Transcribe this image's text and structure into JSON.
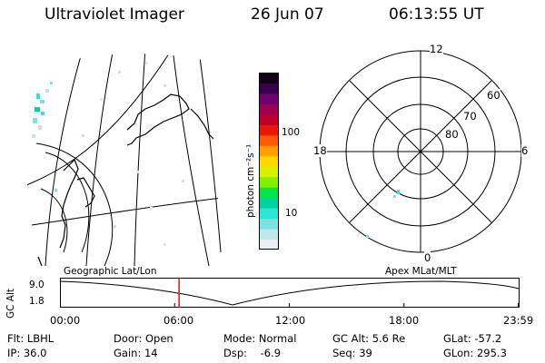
{
  "header": {
    "instrument": "Ultraviolet Imager",
    "date": "26 Jun 07",
    "time": "06:13:55 UT"
  },
  "colorbar": {
    "unit_label": "photon cm⁻²s⁻¹",
    "ticks": [
      "100",
      "10"
    ],
    "colors": [
      "#e8f0f4",
      "#c0e6ea",
      "#7fe0e0",
      "#2ee6d8",
      "#00d2a0",
      "#00e64c",
      "#7ff000",
      "#d8f000",
      "#ffd800",
      "#ffa000",
      "#ff5a00",
      "#e81800",
      "#c00028",
      "#a00050",
      "#700070",
      "#3a0050",
      "#100018"
    ]
  },
  "polar": {
    "mlt_labels": {
      "top": "12",
      "left": "18",
      "right": "6",
      "bottom": "0"
    },
    "lat_labels": [
      "60",
      "70",
      "80"
    ]
  },
  "timeline": {
    "left_title": "Geographic Lat/Lon",
    "right_title": "Apex MLat/MLT",
    "y_axis_label": "GC Alt",
    "y_ticks": [
      "9.0",
      "1.8"
    ],
    "x_ticks": [
      "00:00",
      "06:00",
      "12:00",
      "18:00",
      "23:59"
    ],
    "marker_time": "06:13:55",
    "marker_color": "#d81818"
  },
  "info": {
    "filter": "Flt: LBHL",
    "door": "Door: Open",
    "mode": "Mode: Normal",
    "gc_alt": "GC Alt: 5.6 Re",
    "glat": "GLat: -57.2",
    "ip": "IP: 36.0",
    "gain": "Gain: 14",
    "dsp": "Dsp:    -6.9",
    "seq": "Seq: 39",
    "glon": "GLon: 295.3"
  }
}
